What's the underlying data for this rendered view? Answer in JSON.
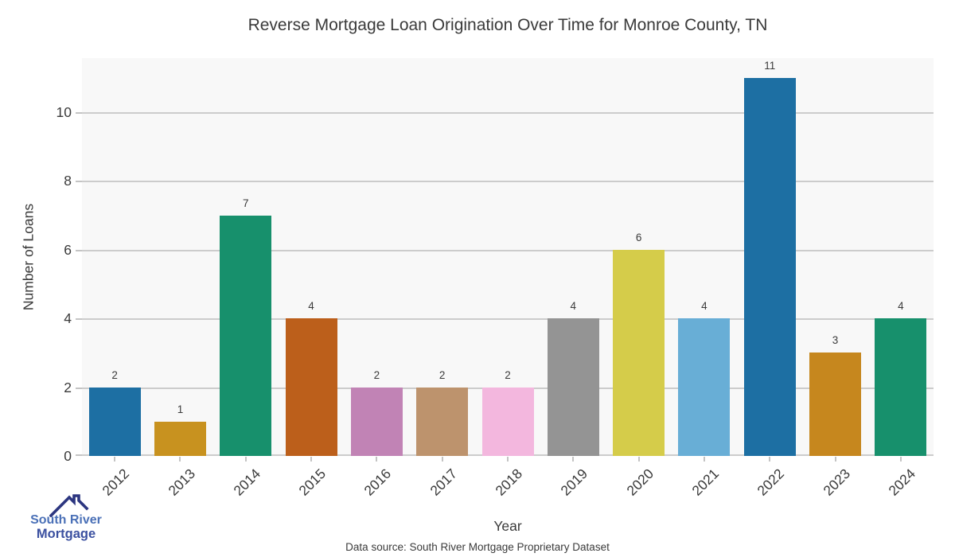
{
  "chart_data": {
    "type": "bar",
    "title": "Reverse Mortgage Loan Origination Over Time for Monroe County, TN",
    "xlabel": "Year",
    "ylabel": "Number of Loans",
    "categories": [
      "2012",
      "2013",
      "2014",
      "2015",
      "2016",
      "2017",
      "2018",
      "2019",
      "2020",
      "2021",
      "2022",
      "2023",
      "2024"
    ],
    "values": [
      2,
      1,
      7,
      4,
      2,
      2,
      2,
      4,
      6,
      4,
      11,
      3,
      4
    ],
    "bar_colors": [
      "#1d6fa3",
      "#c8921f",
      "#17906c",
      "#bc5f1b",
      "#c183b5",
      "#bd936d",
      "#f3b7de",
      "#949494",
      "#d5cc4a",
      "#68aed6",
      "#1d6fa3",
      "#c6871e",
      "#17906c"
    ],
    "yticks": [
      0,
      2,
      4,
      6,
      8,
      10
    ],
    "ylim": [
      0,
      11.574
    ],
    "grid": true,
    "legend": "none",
    "plot_bg_color": "#f8f8f8",
    "gridline_color": "#cccccc",
    "text_color": "#3a3a3a"
  },
  "footer": {
    "source": "Data source: South River Mortgage Proprietary Dataset"
  },
  "logo": {
    "icon": "house-roof-icon",
    "line1": "South River",
    "line2": "Mortgage",
    "line1_color": "#4a70b7",
    "line2_color": "#3b50a0",
    "roof_color": "#2c3680"
  }
}
